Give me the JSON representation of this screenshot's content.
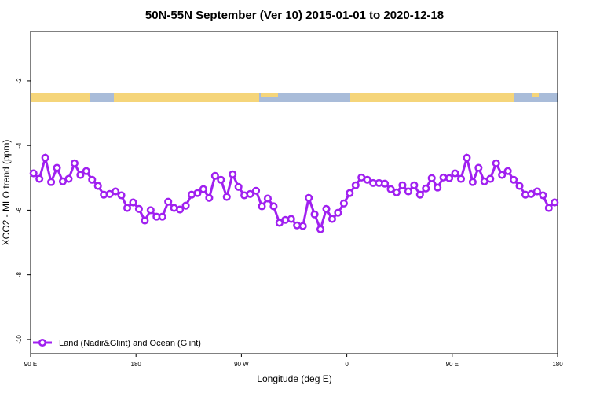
{
  "chart_data": {
    "type": "line",
    "title": "50N-55N September (Ver 10)   2015-01-01 to 2020-12-18",
    "x_label": "Longitude (deg E)",
    "y_label": "XCO2 - MLO trend (ppm)",
    "xlim": [
      90,
      540
    ],
    "xticks": [
      {
        "value": 90,
        "label": "90 E"
      },
      180,
      {
        "value": 270,
        "label": "90 W"
      },
      {
        "value": 360,
        "label": "0"
      },
      {
        "value": 450,
        "label": "90 E"
      },
      {
        "value": 540,
        "label": "180"
      }
    ],
    "ylim": [
      -10.44,
      -0.47
    ],
    "yticks": [
      -2,
      -4,
      -6,
      -8,
      -10
    ],
    "legend": "bottom-left",
    "x": [
      92.5,
      97.5,
      102.5,
      107.5,
      112.5,
      117.5,
      122.5,
      127.5,
      132.5,
      137.5,
      142.5,
      147.5,
      152.5,
      157.5,
      162.5,
      167.5,
      172.5,
      177.5,
      182.5,
      187.5,
      192.5,
      197.5,
      202.5,
      207.5,
      212.5,
      217.5,
      222.5,
      227.5,
      232.5,
      237.5,
      242.5,
      247.5,
      252.5,
      257.5,
      262.5,
      267.5,
      272.5,
      277.5,
      282.5,
      287.5,
      292.5,
      297.5,
      302.5,
      307.5,
      312.5,
      317.5,
      322.5,
      327.5,
      332.5,
      337.5,
      342.5,
      347.5,
      352.5,
      357.5,
      362.5,
      367.5,
      372.5,
      377.5,
      382.5,
      387.5,
      392.5,
      397.5,
      402.5,
      407.5,
      412.5,
      417.5,
      422.5,
      427.5,
      432.5,
      437.5,
      442.5,
      447.5,
      452.5,
      457.5,
      462.5,
      467.5,
      472.5,
      477.5,
      482.5,
      487.5,
      492.5,
      497.5,
      502.5,
      507.5,
      512.5,
      517.5,
      522.5,
      527.5,
      532.5,
      537.5
    ],
    "series": [
      {
        "name": "Land (Nadir&Glint) and Ocean (Glint)",
        "color": "#a020f0",
        "values": [
          -4.86,
          -5.03,
          -4.38,
          -5.13,
          -4.69,
          -5.11,
          -5.03,
          -4.55,
          -4.91,
          -4.79,
          -5.06,
          -5.25,
          -5.52,
          -5.5,
          -5.42,
          -5.54,
          -5.93,
          -5.76,
          -5.96,
          -6.32,
          -6.0,
          -6.2,
          -6.2,
          -5.74,
          -5.93,
          -5.98,
          -5.86,
          -5.52,
          -5.47,
          -5.35,
          -5.62,
          -4.94,
          -5.06,
          -5.59,
          -4.89,
          -5.28,
          -5.54,
          -5.5,
          -5.4,
          -5.88,
          -5.64,
          -5.88,
          -6.39,
          -6.3,
          -6.27,
          -6.47,
          -6.49,
          -5.62,
          -6.13,
          -6.59,
          -5.96,
          -6.27,
          -6.08,
          -5.79,
          -5.47,
          -5.23,
          -4.99,
          -5.06,
          -5.16,
          -5.16,
          -5.18,
          -5.35,
          -5.45,
          -5.23,
          -5.42,
          -5.23,
          -5.52,
          -5.33,
          -5.01,
          -5.3,
          -4.99,
          -5.01,
          -4.86,
          -5.03,
          -4.38,
          -5.13,
          -4.69,
          -5.11,
          -5.03,
          -4.55,
          -4.91,
          -4.79,
          -5.06,
          -5.25,
          -5.52,
          -5.5,
          -5.42,
          -5.54,
          -5.93,
          -5.76
        ]
      }
    ]
  }
}
